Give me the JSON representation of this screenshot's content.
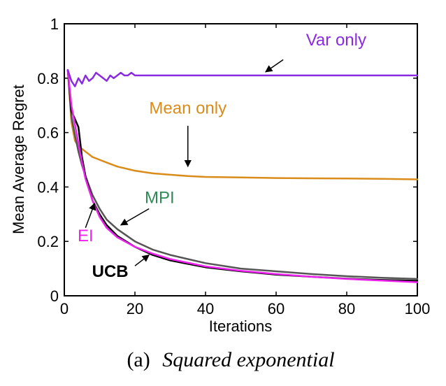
{
  "chart_data": {
    "type": "line",
    "title": "",
    "xlabel": "Iterations",
    "ylabel": "Mean Average Regret",
    "xlim": [
      0,
      100
    ],
    "ylim": [
      0,
      1
    ],
    "xticks": [
      "0",
      "20",
      "40",
      "60",
      "80",
      "100"
    ],
    "yticks": [
      "0",
      "0.2",
      "0.4",
      "0.6",
      "0.8",
      "1"
    ],
    "grid": false,
    "caption_label": "(a)",
    "caption_text": "Squared exponential",
    "series": [
      {
        "name": "Var only",
        "color": "#8a2be2",
        "x": [
          1,
          2,
          3,
          4,
          5,
          6,
          7,
          8,
          9,
          10,
          11,
          12,
          13,
          14,
          15,
          16,
          17,
          18,
          19,
          20,
          25,
          30,
          40,
          50,
          60,
          70,
          80,
          90,
          100
        ],
        "values": [
          0.83,
          0.79,
          0.77,
          0.8,
          0.78,
          0.81,
          0.79,
          0.8,
          0.82,
          0.81,
          0.8,
          0.79,
          0.81,
          0.8,
          0.81,
          0.82,
          0.81,
          0.81,
          0.82,
          0.81,
          0.81,
          0.81,
          0.81,
          0.81,
          0.81,
          0.81,
          0.81,
          0.81,
          0.81
        ]
      },
      {
        "name": "Mean only",
        "color": "#d98c1a",
        "x": [
          1,
          2,
          3,
          4,
          5,
          6,
          8,
          10,
          12,
          15,
          20,
          25,
          30,
          35,
          40,
          50,
          60,
          70,
          80,
          90,
          100
        ],
        "values": [
          0.83,
          0.64,
          0.57,
          0.55,
          0.54,
          0.53,
          0.51,
          0.5,
          0.49,
          0.475,
          0.46,
          0.45,
          0.445,
          0.44,
          0.437,
          0.435,
          0.433,
          0.432,
          0.431,
          0.43,
          0.428
        ]
      },
      {
        "name": "MPI",
        "color": "#555555",
        "x": [
          1,
          2,
          3,
          4,
          5,
          6,
          8,
          10,
          12,
          15,
          20,
          25,
          30,
          40,
          50,
          60,
          70,
          80,
          90,
          100
        ],
        "values": [
          0.83,
          0.66,
          0.59,
          0.53,
          0.48,
          0.44,
          0.37,
          0.32,
          0.28,
          0.245,
          0.2,
          0.17,
          0.15,
          0.12,
          0.1,
          0.09,
          0.08,
          0.072,
          0.066,
          0.062
        ]
      },
      {
        "name": "UCB",
        "color": "#000000",
        "x": [
          1,
          2,
          3,
          4,
          5,
          6,
          8,
          10,
          12,
          15,
          20,
          25,
          30,
          40,
          50,
          60,
          70,
          80,
          90,
          100
        ],
        "values": [
          0.83,
          0.68,
          0.65,
          0.62,
          0.51,
          0.44,
          0.35,
          0.3,
          0.26,
          0.22,
          0.18,
          0.15,
          0.13,
          0.105,
          0.09,
          0.078,
          0.07,
          0.063,
          0.058,
          0.055
        ]
      },
      {
        "name": "EI",
        "color": "#ee22ee",
        "x": [
          1,
          2,
          3,
          4,
          5,
          6,
          8,
          10,
          12,
          15,
          20,
          25,
          30,
          40,
          50,
          60,
          70,
          80,
          90,
          100
        ],
        "values": [
          0.83,
          0.7,
          0.63,
          0.56,
          0.49,
          0.43,
          0.35,
          0.29,
          0.25,
          0.215,
          0.18,
          0.155,
          0.135,
          0.108,
          0.092,
          0.08,
          0.07,
          0.062,
          0.056,
          0.05
        ]
      }
    ],
    "annotations": [
      {
        "text": "Var only",
        "series": "Var only",
        "color": "#8a2be2",
        "bold": false
      },
      {
        "text": "Mean only",
        "series": "Mean only",
        "color": "#d98c1a",
        "bold": false
      },
      {
        "text": "MPI",
        "series": "MPI",
        "color": "#2e8b57",
        "bold": false
      },
      {
        "text": "EI",
        "series": "EI",
        "color": "#ee22ee",
        "bold": false
      },
      {
        "text": "UCB",
        "series": "UCB",
        "color": "#000000",
        "bold": true
      }
    ]
  }
}
